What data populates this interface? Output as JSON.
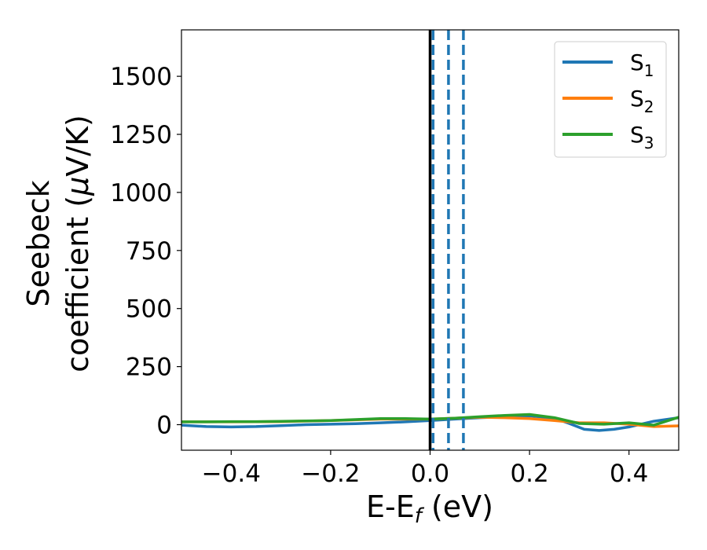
{
  "chart_data": {
    "type": "line",
    "title": "",
    "xlabel": "E-E",
    "xlabel_sub": "f",
    "xlabel_unit": " (eV)",
    "ylabel_line1": "Seebeck",
    "ylabel_line2_prefix": "coefficient  (",
    "ylabel_mu": "μ",
    "ylabel_line2_suffix": "V/K)",
    "xlim": [
      -0.5,
      0.5
    ],
    "ylim": [
      -110,
      1700
    ],
    "x_ticks": [
      -0.4,
      -0.2,
      0.0,
      0.2,
      0.4
    ],
    "x_tick_labels": [
      "−0.4",
      "−0.2",
      "0.0",
      "0.2",
      "0.4"
    ],
    "y_ticks": [
      0,
      250,
      500,
      750,
      1000,
      1250,
      1500
    ],
    "y_tick_labels": [
      "0",
      "250",
      "500",
      "750",
      "1000",
      "1250",
      "1500"
    ],
    "grid": false,
    "legend_position": "top-right",
    "series": [
      {
        "name": "S",
        "name_sub": "1",
        "color": "#1f77b4",
        "x": [
          -0.5,
          -0.45,
          -0.4,
          -0.35,
          -0.3,
          -0.25,
          -0.2,
          -0.15,
          -0.1,
          -0.05,
          0.0,
          0.05,
          0.1,
          0.15,
          0.2,
          0.25,
          0.28,
          0.31,
          0.34,
          0.37,
          0.4,
          0.45,
          0.5
        ],
        "y": [
          -2,
          -8,
          -10,
          -8,
          -4,
          0,
          2,
          4,
          8,
          12,
          18,
          24,
          30,
          34,
          38,
          28,
          5,
          -20,
          -25,
          -20,
          -10,
          15,
          30
        ]
      },
      {
        "name": "S",
        "name_sub": "2",
        "color": "#ff7f0e",
        "x": [
          -0.5,
          -0.4,
          -0.3,
          -0.2,
          -0.1,
          0.0,
          0.05,
          0.1,
          0.15,
          0.2,
          0.25,
          0.3,
          0.35,
          0.4,
          0.45,
          0.5
        ],
        "y": [
          12,
          12,
          13,
          18,
          24,
          24,
          28,
          32,
          30,
          26,
          18,
          8,
          8,
          2,
          -8,
          -5
        ]
      },
      {
        "name": "S",
        "name_sub": "3",
        "color": "#2ca02c",
        "x": [
          -0.5,
          -0.45,
          -0.4,
          -0.35,
          -0.3,
          -0.25,
          -0.2,
          -0.15,
          -0.1,
          -0.05,
          0.0,
          0.05,
          0.1,
          0.15,
          0.2,
          0.25,
          0.3,
          0.35,
          0.4,
          0.45,
          0.5
        ],
        "y": [
          12,
          12,
          13,
          13,
          14,
          16,
          18,
          22,
          26,
          26,
          24,
          28,
          34,
          40,
          44,
          30,
          5,
          2,
          8,
          -2,
          32
        ]
      }
    ],
    "vertical_lines": [
      {
        "x": 0.0,
        "color": "#000000",
        "style": "solid"
      },
      {
        "x": 0.006,
        "color": "#1f77b4",
        "style": "dashed"
      },
      {
        "x": 0.037,
        "color": "#1f77b4",
        "style": "dashed"
      },
      {
        "x": 0.067,
        "color": "#1f77b4",
        "style": "dashed"
      }
    ]
  }
}
